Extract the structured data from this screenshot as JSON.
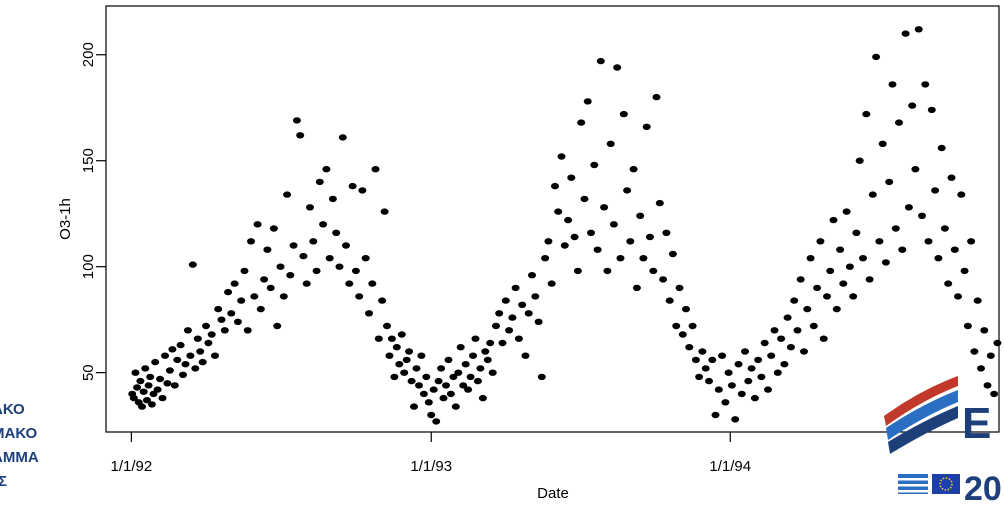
{
  "chart_data": {
    "type": "scatter",
    "xlabel": "Date",
    "ylabel": "O3-1h",
    "xlim": [
      "1991-12-01",
      "1994-11-25"
    ],
    "ylim": [
      22,
      223
    ],
    "x_ticks": [
      {
        "date": "1992-01-01",
        "label": "1/1/92"
      },
      {
        "date": "1993-01-01",
        "label": "1/1/93"
      },
      {
        "date": "1994-01-01",
        "label": "1/1/94"
      }
    ],
    "y_ticks": [
      50,
      100,
      150,
      200
    ],
    "grid": false,
    "marker_color": "#000000",
    "series": [
      {
        "points": [
          [
            "1992-01-02",
            40
          ],
          [
            "1992-01-04",
            38
          ],
          [
            "1992-01-06",
            50
          ],
          [
            "1992-01-08",
            43
          ],
          [
            "1992-01-10",
            36
          ],
          [
            "1992-01-12",
            46
          ],
          [
            "1992-01-14",
            34
          ],
          [
            "1992-01-16",
            41
          ],
          [
            "1992-01-18",
            52
          ],
          [
            "1992-01-20",
            37
          ],
          [
            "1992-01-22",
            44
          ],
          [
            "1992-01-24",
            48
          ],
          [
            "1992-01-26",
            35
          ],
          [
            "1992-01-28",
            40
          ],
          [
            "1992-01-30",
            55
          ],
          [
            "1992-02-02",
            42
          ],
          [
            "1992-02-05",
            47
          ],
          [
            "1992-02-08",
            38
          ],
          [
            "1992-02-11",
            58
          ],
          [
            "1992-02-14",
            45
          ],
          [
            "1992-02-17",
            51
          ],
          [
            "1992-02-20",
            61
          ],
          [
            "1992-02-23",
            44
          ],
          [
            "1992-02-26",
            56
          ],
          [
            "1992-03-01",
            63
          ],
          [
            "1992-03-04",
            49
          ],
          [
            "1992-03-07",
            54
          ],
          [
            "1992-03-10",
            70
          ],
          [
            "1992-03-13",
            58
          ],
          [
            "1992-03-16",
            101
          ],
          [
            "1992-03-19",
            52
          ],
          [
            "1992-03-22",
            66
          ],
          [
            "1992-03-25",
            60
          ],
          [
            "1992-03-28",
            55
          ],
          [
            "1992-04-01",
            72
          ],
          [
            "1992-04-04",
            64
          ],
          [
            "1992-04-08",
            68
          ],
          [
            "1992-04-12",
            58
          ],
          [
            "1992-04-16",
            80
          ],
          [
            "1992-04-20",
            75
          ],
          [
            "1992-04-24",
            70
          ],
          [
            "1992-04-28",
            88
          ],
          [
            "1992-05-02",
            78
          ],
          [
            "1992-05-06",
            92
          ],
          [
            "1992-05-10",
            74
          ],
          [
            "1992-05-14",
            84
          ],
          [
            "1992-05-18",
            98
          ],
          [
            "1992-05-22",
            70
          ],
          [
            "1992-05-26",
            112
          ],
          [
            "1992-05-30",
            86
          ],
          [
            "1992-06-03",
            120
          ],
          [
            "1992-06-07",
            80
          ],
          [
            "1992-06-11",
            94
          ],
          [
            "1992-06-15",
            108
          ],
          [
            "1992-06-19",
            90
          ],
          [
            "1992-06-23",
            118
          ],
          [
            "1992-06-27",
            72
          ],
          [
            "1992-07-01",
            100
          ],
          [
            "1992-07-05",
            86
          ],
          [
            "1992-07-09",
            134
          ],
          [
            "1992-07-13",
            96
          ],
          [
            "1992-07-17",
            110
          ],
          [
            "1992-07-21",
            169
          ],
          [
            "1992-07-25",
            162
          ],
          [
            "1992-07-29",
            105
          ],
          [
            "1992-08-02",
            92
          ],
          [
            "1992-08-06",
            128
          ],
          [
            "1992-08-10",
            112
          ],
          [
            "1992-08-14",
            98
          ],
          [
            "1992-08-18",
            140
          ],
          [
            "1992-08-22",
            120
          ],
          [
            "1992-08-26",
            146
          ],
          [
            "1992-08-30",
            104
          ],
          [
            "1992-09-03",
            132
          ],
          [
            "1992-09-07",
            116
          ],
          [
            "1992-09-11",
            100
          ],
          [
            "1992-09-15",
            161
          ],
          [
            "1992-09-19",
            110
          ],
          [
            "1992-09-23",
            92
          ],
          [
            "1992-09-27",
            138
          ],
          [
            "1992-10-01",
            98
          ],
          [
            "1992-10-05",
            86
          ],
          [
            "1992-10-09",
            136
          ],
          [
            "1992-10-13",
            104
          ],
          [
            "1992-10-17",
            78
          ],
          [
            "1992-10-21",
            92
          ],
          [
            "1992-10-25",
            146
          ],
          [
            "1992-10-29",
            66
          ],
          [
            "1992-11-02",
            84
          ],
          [
            "1992-11-05",
            126
          ],
          [
            "1992-11-08",
            72
          ],
          [
            "1992-11-11",
            58
          ],
          [
            "1992-11-14",
            66
          ],
          [
            "1992-11-17",
            48
          ],
          [
            "1992-11-20",
            62
          ],
          [
            "1992-11-23",
            54
          ],
          [
            "1992-11-26",
            68
          ],
          [
            "1992-11-29",
            50
          ],
          [
            "1992-12-02",
            56
          ],
          [
            "1992-12-05",
            60
          ],
          [
            "1992-12-08",
            46
          ],
          [
            "1992-12-11",
            34
          ],
          [
            "1992-12-14",
            52
          ],
          [
            "1992-12-17",
            44
          ],
          [
            "1992-12-20",
            58
          ],
          [
            "1992-12-23",
            40
          ],
          [
            "1992-12-26",
            48
          ],
          [
            "1992-12-29",
            36
          ],
          [
            "1993-01-01",
            30
          ],
          [
            "1993-01-04",
            42
          ],
          [
            "1993-01-07",
            27
          ],
          [
            "1993-01-10",
            46
          ],
          [
            "1993-01-13",
            52
          ],
          [
            "1993-01-16",
            38
          ],
          [
            "1993-01-19",
            44
          ],
          [
            "1993-01-22",
            56
          ],
          [
            "1993-01-25",
            40
          ],
          [
            "1993-01-28",
            48
          ],
          [
            "1993-01-31",
            34
          ],
          [
            "1993-02-03",
            50
          ],
          [
            "1993-02-06",
            62
          ],
          [
            "1993-02-09",
            44
          ],
          [
            "1993-02-12",
            54
          ],
          [
            "1993-02-15",
            42
          ],
          [
            "1993-02-18",
            48
          ],
          [
            "1993-02-21",
            58
          ],
          [
            "1993-02-24",
            66
          ],
          [
            "1993-02-27",
            46
          ],
          [
            "1993-03-02",
            52
          ],
          [
            "1993-03-05",
            38
          ],
          [
            "1993-03-08",
            60
          ],
          [
            "1993-03-11",
            56
          ],
          [
            "1993-03-14",
            64
          ],
          [
            "1993-03-17",
            50
          ],
          [
            "1993-03-21",
            72
          ],
          [
            "1993-03-25",
            78
          ],
          [
            "1993-03-29",
            64
          ],
          [
            "1993-04-02",
            84
          ],
          [
            "1993-04-06",
            70
          ],
          [
            "1993-04-10",
            76
          ],
          [
            "1993-04-14",
            90
          ],
          [
            "1993-04-18",
            66
          ],
          [
            "1993-04-22",
            82
          ],
          [
            "1993-04-26",
            58
          ],
          [
            "1993-04-30",
            78
          ],
          [
            "1993-05-04",
            96
          ],
          [
            "1993-05-08",
            86
          ],
          [
            "1993-05-12",
            74
          ],
          [
            "1993-05-16",
            48
          ],
          [
            "1993-05-20",
            104
          ],
          [
            "1993-05-24",
            112
          ],
          [
            "1993-05-28",
            92
          ],
          [
            "1993-06-01",
            138
          ],
          [
            "1993-06-05",
            126
          ],
          [
            "1993-06-09",
            152
          ],
          [
            "1993-06-13",
            110
          ],
          [
            "1993-06-17",
            122
          ],
          [
            "1993-06-21",
            142
          ],
          [
            "1993-06-25",
            114
          ],
          [
            "1993-06-29",
            98
          ],
          [
            "1993-07-03",
            168
          ],
          [
            "1993-07-07",
            132
          ],
          [
            "1993-07-11",
            178
          ],
          [
            "1993-07-15",
            116
          ],
          [
            "1993-07-19",
            148
          ],
          [
            "1993-07-23",
            108
          ],
          [
            "1993-07-27",
            197
          ],
          [
            "1993-07-31",
            128
          ],
          [
            "1993-08-04",
            98
          ],
          [
            "1993-08-08",
            158
          ],
          [
            "1993-08-12",
            120
          ],
          [
            "1993-08-16",
            194
          ],
          [
            "1993-08-20",
            104
          ],
          [
            "1993-08-24",
            172
          ],
          [
            "1993-08-28",
            136
          ],
          [
            "1993-09-01",
            112
          ],
          [
            "1993-09-05",
            146
          ],
          [
            "1993-09-09",
            90
          ],
          [
            "1993-09-13",
            124
          ],
          [
            "1993-09-17",
            104
          ],
          [
            "1993-09-21",
            166
          ],
          [
            "1993-09-25",
            114
          ],
          [
            "1993-09-29",
            98
          ],
          [
            "1993-10-03",
            180
          ],
          [
            "1993-10-07",
            130
          ],
          [
            "1993-10-11",
            94
          ],
          [
            "1993-10-15",
            116
          ],
          [
            "1993-10-19",
            84
          ],
          [
            "1993-10-23",
            106
          ],
          [
            "1993-10-27",
            72
          ],
          [
            "1993-10-31",
            90
          ],
          [
            "1993-11-04",
            68
          ],
          [
            "1993-11-08",
            80
          ],
          [
            "1993-11-12",
            62
          ],
          [
            "1993-11-16",
            72
          ],
          [
            "1993-11-20",
            56
          ],
          [
            "1993-11-24",
            48
          ],
          [
            "1993-11-28",
            60
          ],
          [
            "1993-12-02",
            52
          ],
          [
            "1993-12-06",
            46
          ],
          [
            "1993-12-10",
            56
          ],
          [
            "1993-12-14",
            30
          ],
          [
            "1993-12-18",
            42
          ],
          [
            "1993-12-22",
            58
          ],
          [
            "1993-12-26",
            36
          ],
          [
            "1993-12-30",
            50
          ],
          [
            "1994-01-03",
            44
          ],
          [
            "1994-01-07",
            28
          ],
          [
            "1994-01-11",
            54
          ],
          [
            "1994-01-15",
            40
          ],
          [
            "1994-01-19",
            60
          ],
          [
            "1994-01-23",
            46
          ],
          [
            "1994-01-27",
            52
          ],
          [
            "1994-01-31",
            38
          ],
          [
            "1994-02-04",
            56
          ],
          [
            "1994-02-08",
            48
          ],
          [
            "1994-02-12",
            64
          ],
          [
            "1994-02-16",
            42
          ],
          [
            "1994-02-20",
            58
          ],
          [
            "1994-02-24",
            70
          ],
          [
            "1994-02-28",
            50
          ],
          [
            "1994-03-04",
            66
          ],
          [
            "1994-03-08",
            54
          ],
          [
            "1994-03-12",
            76
          ],
          [
            "1994-03-16",
            62
          ],
          [
            "1994-03-20",
            84
          ],
          [
            "1994-03-24",
            70
          ],
          [
            "1994-03-28",
            94
          ],
          [
            "1994-04-01",
            60
          ],
          [
            "1994-04-05",
            80
          ],
          [
            "1994-04-09",
            104
          ],
          [
            "1994-04-13",
            72
          ],
          [
            "1994-04-17",
            90
          ],
          [
            "1994-04-21",
            112
          ],
          [
            "1994-04-25",
            66
          ],
          [
            "1994-04-29",
            86
          ],
          [
            "1994-05-03",
            98
          ],
          [
            "1994-05-07",
            122
          ],
          [
            "1994-05-11",
            80
          ],
          [
            "1994-05-15",
            108
          ],
          [
            "1994-05-19",
            92
          ],
          [
            "1994-05-23",
            126
          ],
          [
            "1994-05-27",
            100
          ],
          [
            "1994-05-31",
            86
          ],
          [
            "1994-06-04",
            116
          ],
          [
            "1994-06-08",
            150
          ],
          [
            "1994-06-12",
            104
          ],
          [
            "1994-06-16",
            172
          ],
          [
            "1994-06-20",
            94
          ],
          [
            "1994-06-24",
            134
          ],
          [
            "1994-06-28",
            199
          ],
          [
            "1994-07-02",
            112
          ],
          [
            "1994-07-06",
            158
          ],
          [
            "1994-07-10",
            102
          ],
          [
            "1994-07-14",
            140
          ],
          [
            "1994-07-18",
            186
          ],
          [
            "1994-07-22",
            118
          ],
          [
            "1994-07-26",
            168
          ],
          [
            "1994-07-30",
            108
          ],
          [
            "1994-08-03",
            210
          ],
          [
            "1994-08-07",
            128
          ],
          [
            "1994-08-11",
            176
          ],
          [
            "1994-08-15",
            146
          ],
          [
            "1994-08-19",
            212
          ],
          [
            "1994-08-23",
            124
          ],
          [
            "1994-08-27",
            186
          ],
          [
            "1994-08-31",
            112
          ],
          [
            "1994-09-04",
            174
          ],
          [
            "1994-09-08",
            136
          ],
          [
            "1994-09-12",
            104
          ],
          [
            "1994-09-16",
            156
          ],
          [
            "1994-09-20",
            118
          ],
          [
            "1994-09-24",
            92
          ],
          [
            "1994-09-28",
            142
          ],
          [
            "1994-10-02",
            108
          ],
          [
            "1994-10-06",
            86
          ],
          [
            "1994-10-10",
            134
          ],
          [
            "1994-10-14",
            98
          ],
          [
            "1994-10-18",
            72
          ],
          [
            "1994-10-22",
            112
          ],
          [
            "1994-10-26",
            60
          ],
          [
            "1994-10-30",
            84
          ],
          [
            "1994-11-03",
            52
          ],
          [
            "1994-11-07",
            70
          ],
          [
            "1994-11-11",
            44
          ],
          [
            "1994-11-15",
            58
          ],
          [
            "1994-11-19",
            40
          ],
          [
            "1994-11-23",
            64
          ]
        ]
      }
    ]
  }
}
